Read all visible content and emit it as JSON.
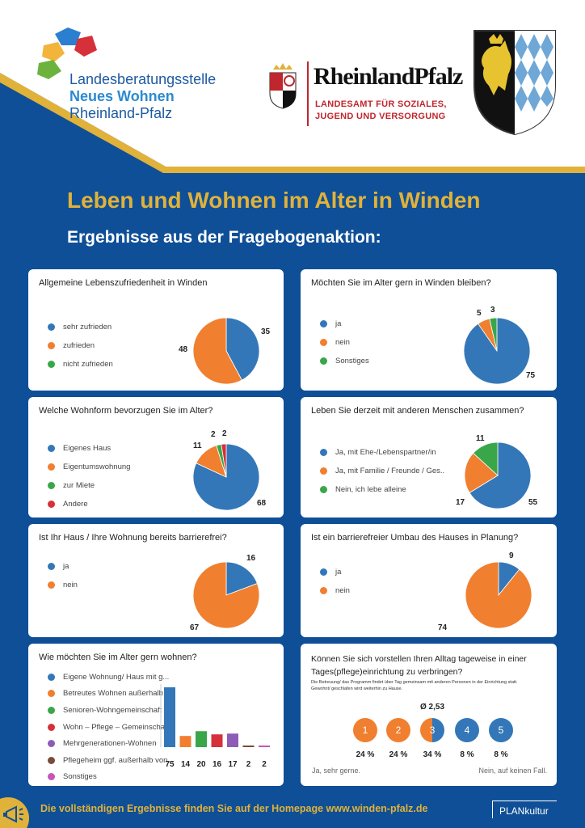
{
  "header": {
    "org_line1": "Landesberatungsstelle",
    "org_line2": "Neues Wohnen",
    "org_line3": "Rheinland-Pfalz",
    "rp_title": "RheinlandPfalz",
    "rp_sub1": "LANDESAMT FÜR SOZIALES,",
    "rp_sub2": "JUGEND UND VERSORGUNG"
  },
  "title": "Leben und Wohnen im Alter in Winden",
  "subtitle": "Ergebnisse aus der Fragebogenaktion:",
  "colors": {
    "blue": "#3477b8",
    "orange": "#f07f2f",
    "green": "#3aa64a",
    "red": "#d6303a",
    "purple": "#8e5cb6",
    "brown": "#7a4a3a",
    "pink": "#c656b8",
    "gold": "#e0b23a",
    "bg": "#0f4f97"
  },
  "chart_data": [
    {
      "type": "pie",
      "title": "Allgemeine Lebenszufriedenheit in Winden",
      "categories": [
        "sehr zufrieden",
        "zufrieden",
        "nicht zufrieden"
      ],
      "values": [
        35,
        48,
        0
      ]
    },
    {
      "type": "pie",
      "title": "Möchten Sie im Alter gern in Winden bleiben?",
      "categories": [
        "ja",
        "nein",
        "Sonstiges"
      ],
      "values": [
        75,
        5,
        3
      ]
    },
    {
      "type": "pie",
      "title": "Welche Wohnform bevorzugen Sie im Alter?",
      "categories": [
        "Eigenes Haus",
        "Eigentumswohnung",
        "zur Miete",
        "Andere"
      ],
      "values": [
        68,
        11,
        2,
        2
      ]
    },
    {
      "type": "pie",
      "title": "Leben Sie derzeit mit anderen Menschen zusammen?",
      "categories": [
        "Ja, mit Ehe-/Lebenspartner/in",
        "Ja, mit Familie / Freunde / Ges..",
        "Nein, ich lebe alleine"
      ],
      "values": [
        55,
        17,
        11
      ]
    },
    {
      "type": "pie",
      "title": "Ist Ihr Haus / Ihre Wohnung bereits barrierefrei?",
      "categories": [
        "ja",
        "nein"
      ],
      "values": [
        16,
        67
      ]
    },
    {
      "type": "pie",
      "title": "Ist ein barrierefreier Umbau des Hauses in Planung?",
      "categories": [
        "ja",
        "nein"
      ],
      "values": [
        9,
        74
      ]
    },
    {
      "type": "bar",
      "title": "Wie möchten Sie im Alter gern wohnen?",
      "categories": [
        "Eigene Wohnung/ Haus mit g...",
        "Betreutes Wohnen außerhalb ...",
        "Senioren-Wohngemeinschaft (...",
        "Wohn – Pflege – Gemeinschaf...",
        "Mehrgenerationen-Wohnen",
        "Pflegeheim ggf. außerhalb von...",
        "Sonstiges"
      ],
      "values": [
        75,
        14,
        20,
        16,
        17,
        2,
        2
      ]
    },
    {
      "type": "scale",
      "title_line1": "Können Sie sich vorstellen Ihren Alltag tageweise in einer",
      "title_line2": "Tages(pflege)einrichtung zu verbringen?",
      "note_line1": "Die Betreuung/ das Programm findet über Tag gemeinsam mit anderen Personen in der Einrichtung statt.",
      "note_line2": "Gewohnt/ geschlafen wird weiterhin zu Hause.",
      "average": "Ø  2,53",
      "categories": [
        "1",
        "2",
        "3",
        "4",
        "5"
      ],
      "percents": [
        "24 %",
        "24 %",
        "34 %",
        "8 %",
        "8 %"
      ],
      "left_label": "Ja, sehr gerne.",
      "right_label": "Nein, auf keinen Fall."
    }
  ],
  "footer": "Die vollständigen Ergebnisse finden Sie auf der Homepage www.winden-pfalz.de",
  "plan_logo": "PLANkultur"
}
